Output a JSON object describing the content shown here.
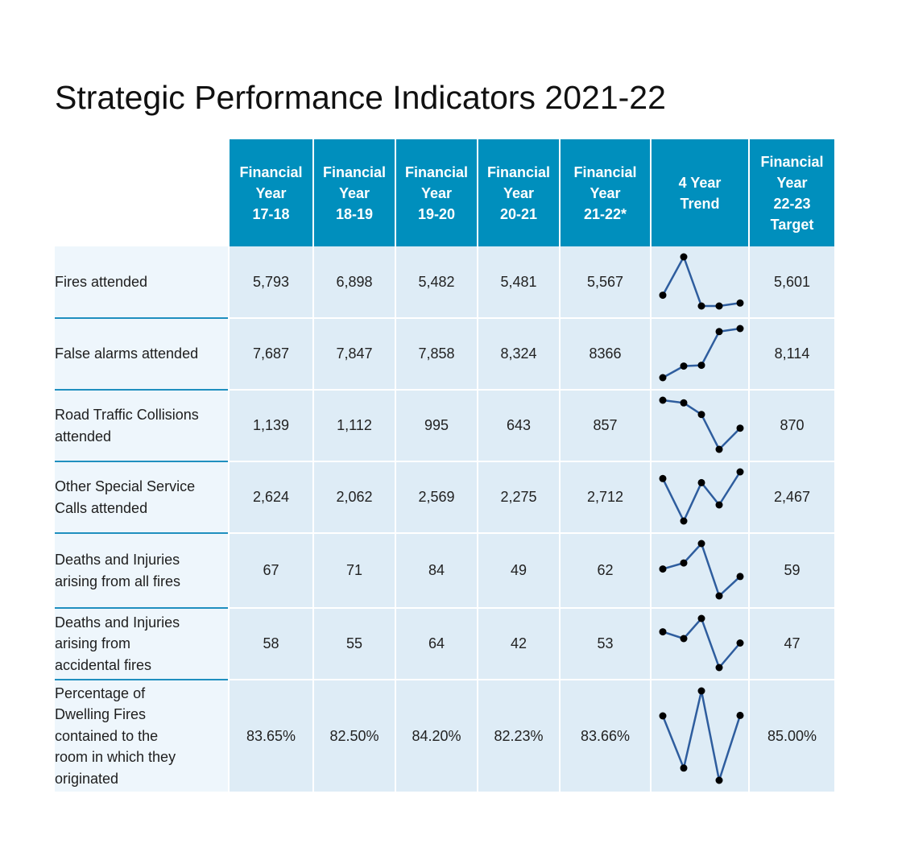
{
  "title": "Strategic Performance Indicators 2021-22",
  "colors": {
    "header_bg": "#008fbd",
    "cell_bg": "#deecf6",
    "label_bg": "#eef6fc",
    "divider": "#1f8fbf",
    "trend_line": "#2e5d9e",
    "trend_point": "#000000"
  },
  "headers": [
    [
      "Financial",
      "Year",
      "17-18"
    ],
    [
      "Financial",
      "Year",
      "18-19"
    ],
    [
      "Financial",
      "Year",
      "19-20"
    ],
    [
      "Financial",
      "Year",
      "20-21"
    ],
    [
      "Financial",
      "Year",
      "21-22*"
    ],
    [
      "4 Year",
      "Trend"
    ],
    [
      "Financial",
      "Year",
      "22-23",
      "Target"
    ]
  ],
  "rows": [
    {
      "label": [
        "Fires attended"
      ],
      "values": [
        "5,793",
        "6,898",
        "5,482",
        "5,481",
        "5,567"
      ],
      "target": "5,601"
    },
    {
      "label": [
        "False alarms attended"
      ],
      "values": [
        "7,687",
        "7,847",
        "7,858",
        "8,324",
        "8366"
      ],
      "target": "8,114"
    },
    {
      "label": [
        "Road Traffic Collisions",
        "attended"
      ],
      "values": [
        "1,139",
        "1,112",
        "995",
        "643",
        "857"
      ],
      "target": "870"
    },
    {
      "label": [
        "Other Special Service",
        "Calls attended"
      ],
      "values": [
        "2,624",
        "2,062",
        "2,569",
        "2,275",
        "2,712"
      ],
      "target": "2,467"
    },
    {
      "label": [
        "Deaths and Injuries",
        "arising from all fires"
      ],
      "values": [
        "67",
        "71",
        "84",
        "49",
        "62"
      ],
      "target": "59"
    },
    {
      "label": [
        "Deaths and Injuries",
        "arising from",
        "accidental fires"
      ],
      "values": [
        "58",
        "55",
        "64",
        "42",
        "53"
      ],
      "target": "47"
    },
    {
      "label": [
        "Percentage of",
        "Dwelling Fires",
        "contained to the",
        "room in which they",
        "originated"
      ],
      "values": [
        "83.65%",
        "82.50%",
        "84.20%",
        "82.23%",
        "83.66%"
      ],
      "target": "85.00%"
    }
  ],
  "chart_data": [
    {
      "type": "line",
      "name": "Fires attended",
      "x": [
        "17-18",
        "18-19",
        "19-20",
        "20-21",
        "21-22*"
      ],
      "values": [
        5793,
        6898,
        5482,
        5481,
        5567
      ]
    },
    {
      "type": "line",
      "name": "False alarms attended",
      "x": [
        "17-18",
        "18-19",
        "19-20",
        "20-21",
        "21-22*"
      ],
      "values": [
        7687,
        7847,
        7858,
        8324,
        8366
      ]
    },
    {
      "type": "line",
      "name": "Road Traffic Collisions attended",
      "x": [
        "17-18",
        "18-19",
        "19-20",
        "20-21",
        "21-22*"
      ],
      "values": [
        1139,
        1112,
        995,
        643,
        857
      ]
    },
    {
      "type": "line",
      "name": "Other Special Service Calls attended",
      "x": [
        "17-18",
        "18-19",
        "19-20",
        "20-21",
        "21-22*"
      ],
      "values": [
        2624,
        2062,
        2569,
        2275,
        2712
      ]
    },
    {
      "type": "line",
      "name": "Deaths and Injuries arising from all fires",
      "x": [
        "17-18",
        "18-19",
        "19-20",
        "20-21",
        "21-22*"
      ],
      "values": [
        67,
        71,
        84,
        49,
        62
      ]
    },
    {
      "type": "line",
      "name": "Deaths and Injuries arising from accidental fires",
      "x": [
        "17-18",
        "18-19",
        "19-20",
        "20-21",
        "21-22*"
      ],
      "values": [
        58,
        55,
        64,
        42,
        53
      ]
    },
    {
      "type": "line",
      "name": "Percentage of Dwelling Fires contained to the room in which they originated",
      "x": [
        "17-18",
        "18-19",
        "19-20",
        "20-21",
        "21-22*"
      ],
      "values": [
        83.65,
        82.5,
        84.2,
        82.23,
        83.66
      ]
    }
  ]
}
